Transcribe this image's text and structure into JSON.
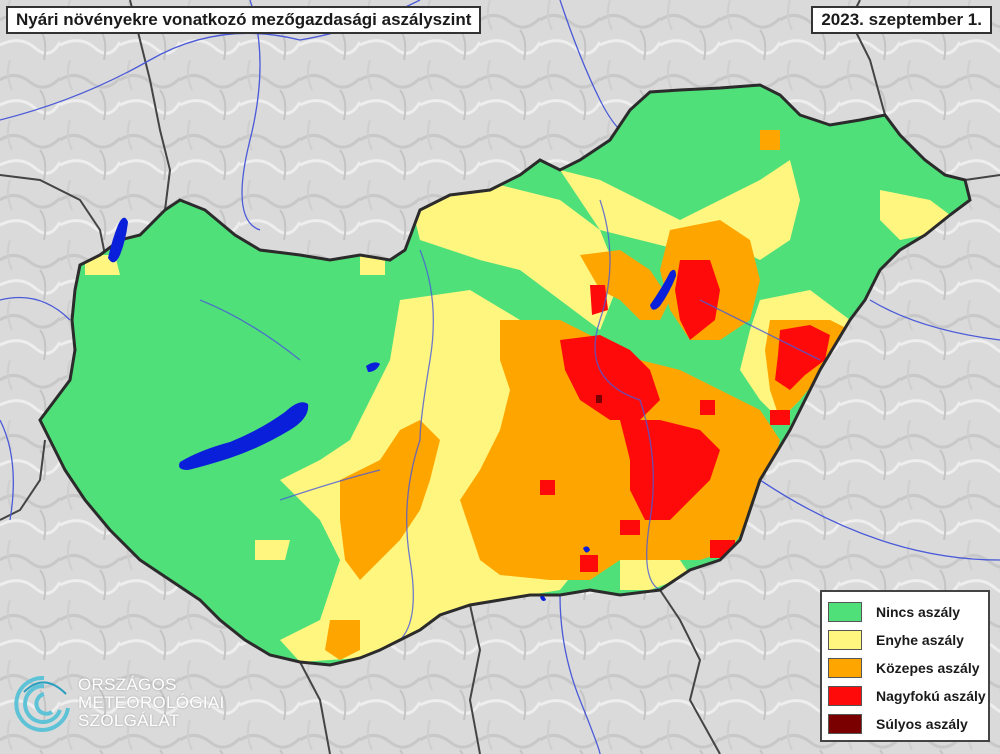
{
  "header": {
    "title": "Nyári növényekre vonatkozó mezőgazdasági aszályszint",
    "date": "2023. szeptember 1."
  },
  "legend": {
    "items": [
      {
        "label": "Nincs aszály",
        "color": "#4fe07a"
      },
      {
        "label": "Enyhe aszály",
        "color": "#fff680"
      },
      {
        "label": "Közepes aszály",
        "color": "#ffa500"
      },
      {
        "label": "Nagyfokú aszály",
        "color": "#ff0a0a"
      },
      {
        "label": "Súlyos aszály",
        "color": "#7a0000"
      }
    ]
  },
  "logo": {
    "line1": "ORSZÁGOS",
    "line2": "METEOROLÓGIAI",
    "line3": "SZOLGÁLAT"
  },
  "colors": {
    "background_terrain": "#d9d9d9",
    "water": "#0a1fd9",
    "border": "#333333",
    "river": "#3a4ad0"
  }
}
